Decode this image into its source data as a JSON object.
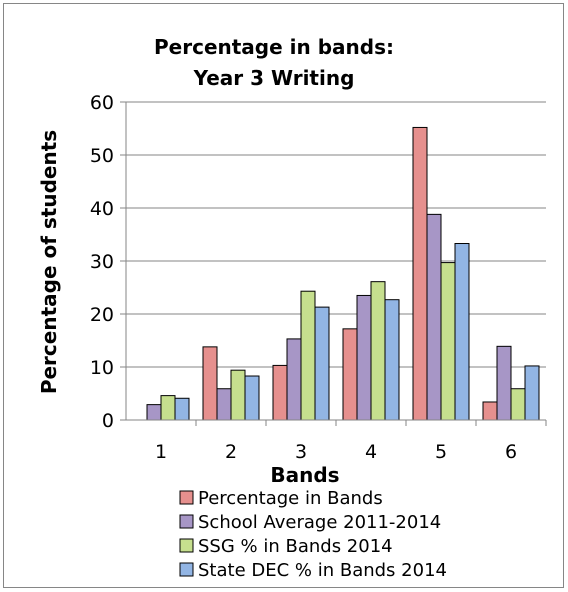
{
  "chart_data": {
    "type": "bar",
    "title_lines": [
      "Percentage in bands:",
      "Year 3 Writing"
    ],
    "xlabel": "Bands",
    "ylabel": "Percentage of students",
    "categories": [
      "1",
      "2",
      "3",
      "4",
      "5",
      "6"
    ],
    "ylim": [
      0,
      60
    ],
    "yticks": [
      "0",
      "10",
      "20",
      "30",
      "40",
      "50",
      "60"
    ],
    "grid": true,
    "legend_position": "bottom",
    "series": [
      {
        "name": "Percentage in Bands",
        "color": "#E6908E",
        "values": [
          0,
          13.8,
          10.3,
          17.2,
          55.2,
          3.4
        ]
      },
      {
        "name": "School Average 2011-2014",
        "color": "#A796C6",
        "values": [
          2.9,
          5.9,
          15.3,
          23.5,
          38.8,
          13.9
        ]
      },
      {
        "name": "SSG % in Bands 2014",
        "color": "#C6DF8E",
        "values": [
          4.6,
          9.4,
          24.3,
          26.1,
          29.7,
          5.9
        ]
      },
      {
        "name": "State DEC % in Bands 2014",
        "color": "#92B5E4",
        "values": [
          4.1,
          8.3,
          21.3,
          22.7,
          33.3,
          10.2
        ]
      }
    ]
  }
}
